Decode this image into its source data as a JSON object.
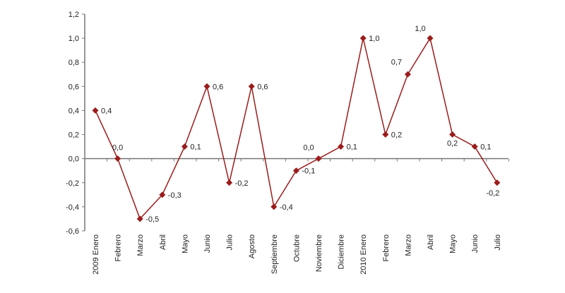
{
  "chart_data": {
    "type": "line",
    "title": "",
    "xlabel": "",
    "ylabel": "",
    "ylim": [
      -0.6,
      1.2
    ],
    "yticks": [
      "1,2",
      "1,0",
      "0,8",
      "0,6",
      "0,4",
      "0,2",
      "0,0",
      "-0,2",
      "-0,4",
      "-0,6"
    ],
    "ytick_values": [
      1.2,
      1.0,
      0.8,
      0.6,
      0.4,
      0.2,
      0.0,
      -0.2,
      -0.4,
      -0.6
    ],
    "grid": false,
    "legend": "none",
    "line_color": "#9b1c1c",
    "marker": "diamond",
    "categories": [
      "2009 Enero",
      "Febrero",
      "Marzo",
      "Abril",
      "Mayo",
      "Junio",
      "Julio",
      "Agosto",
      "Septiembre",
      "Octubre",
      "Noviembre",
      "Diciembre",
      "2010 Enero",
      "Febrero",
      "Marzo",
      "Abril",
      "Mayo",
      "Junio",
      "Julio"
    ],
    "values": [
      0.4,
      0.0,
      -0.5,
      -0.3,
      0.1,
      0.6,
      -0.2,
      0.6,
      -0.4,
      -0.1,
      0.0,
      0.1,
      1.0,
      0.2,
      0.7,
      1.0,
      0.2,
      0.1,
      -0.2
    ],
    "data_labels": [
      "0,4",
      "0,0",
      "-0,5",
      "-0,3",
      "0,1",
      "0,6",
      "-0,2",
      "0,6",
      "-0,4",
      "-0,1",
      "0,0",
      "0,1",
      "1,0",
      "0,2",
      "0,7",
      "1,0",
      "0,2",
      "0,1",
      "-0,2"
    ]
  }
}
